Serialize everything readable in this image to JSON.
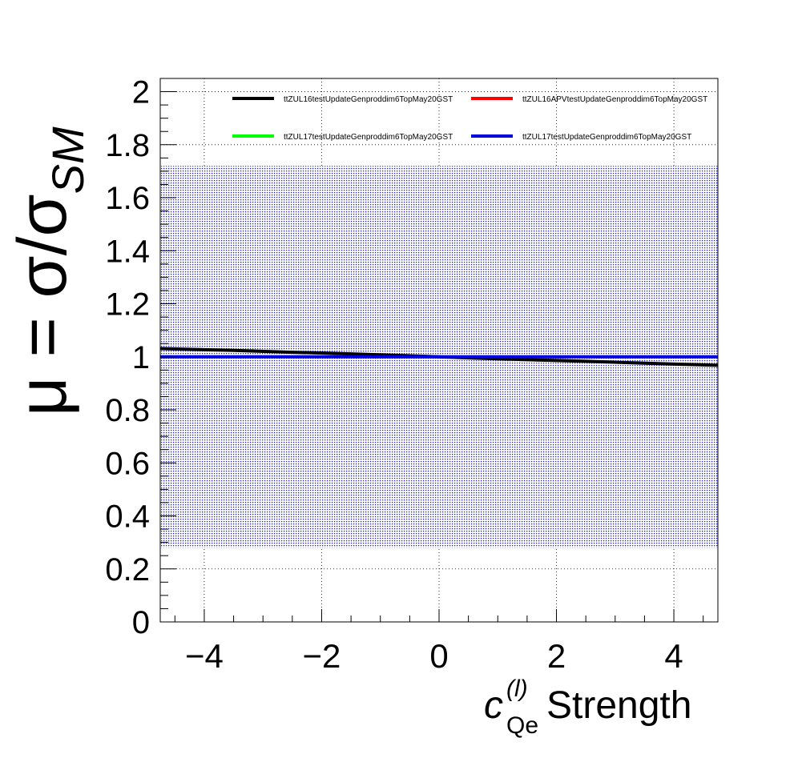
{
  "chart_data": {
    "type": "line",
    "ylabel": "μ = σ/σ",
    "ylabel_sub": "SM",
    "xlabel_sym": "c",
    "xlabel_sup": "(l)",
    "xlabel_sub": "Qe",
    "xlabel_rest": " Strength",
    "xlim": [
      -4.75,
      4.75
    ],
    "ylim": [
      0,
      2.05
    ],
    "x_ticks": [
      -4,
      -2,
      0,
      2,
      4
    ],
    "x_tick_labels": [
      "−4",
      "−2",
      "0",
      "2",
      "4"
    ],
    "y_ticks": [
      0,
      0.2,
      0.4,
      0.6,
      0.8,
      1,
      1.2,
      1.4,
      1.6,
      1.8,
      2
    ],
    "y_tick_labels": [
      "0",
      "0.2",
      "0.4",
      "0.6",
      "0.8",
      "1",
      "1.2",
      "1.4",
      "1.6",
      "1.8",
      "2"
    ],
    "grid": true,
    "band": {
      "x": [
        -4.75,
        4.75
      ],
      "y_low": 0.28,
      "y_high": 1.72,
      "color": "#0000cc"
    },
    "series": [
      {
        "name": "ttZUL16testUpdateGenproddim6TopMay20GST",
        "color": "#000000",
        "x": [
          -4.75,
          -3.5,
          -2.5,
          -1.5,
          -0.5,
          0,
          0.5,
          1.5,
          2.5,
          3.5,
          4.75
        ],
        "y": [
          1.031,
          1.024,
          1.017,
          1.011,
          1.004,
          1.0,
          0.996,
          0.989,
          0.983,
          0.976,
          0.968
        ]
      },
      {
        "name": "ttZUL16APVtestUpdateGenproddim6TopMay20GST",
        "color": "#ff0000",
        "x": [],
        "y": []
      },
      {
        "name": "ttZUL17testUpdateGenproddim6TopMay20GST",
        "color": "#00ff00",
        "x": [],
        "y": []
      },
      {
        "name": "ttZUL17testUpdateGenproddim6TopMay20GST",
        "color": "#0000dd",
        "x": [
          -4.75,
          0,
          4.75
        ],
        "y": [
          1.0,
          1.0,
          1.0
        ]
      }
    ],
    "legend_position": "top"
  }
}
